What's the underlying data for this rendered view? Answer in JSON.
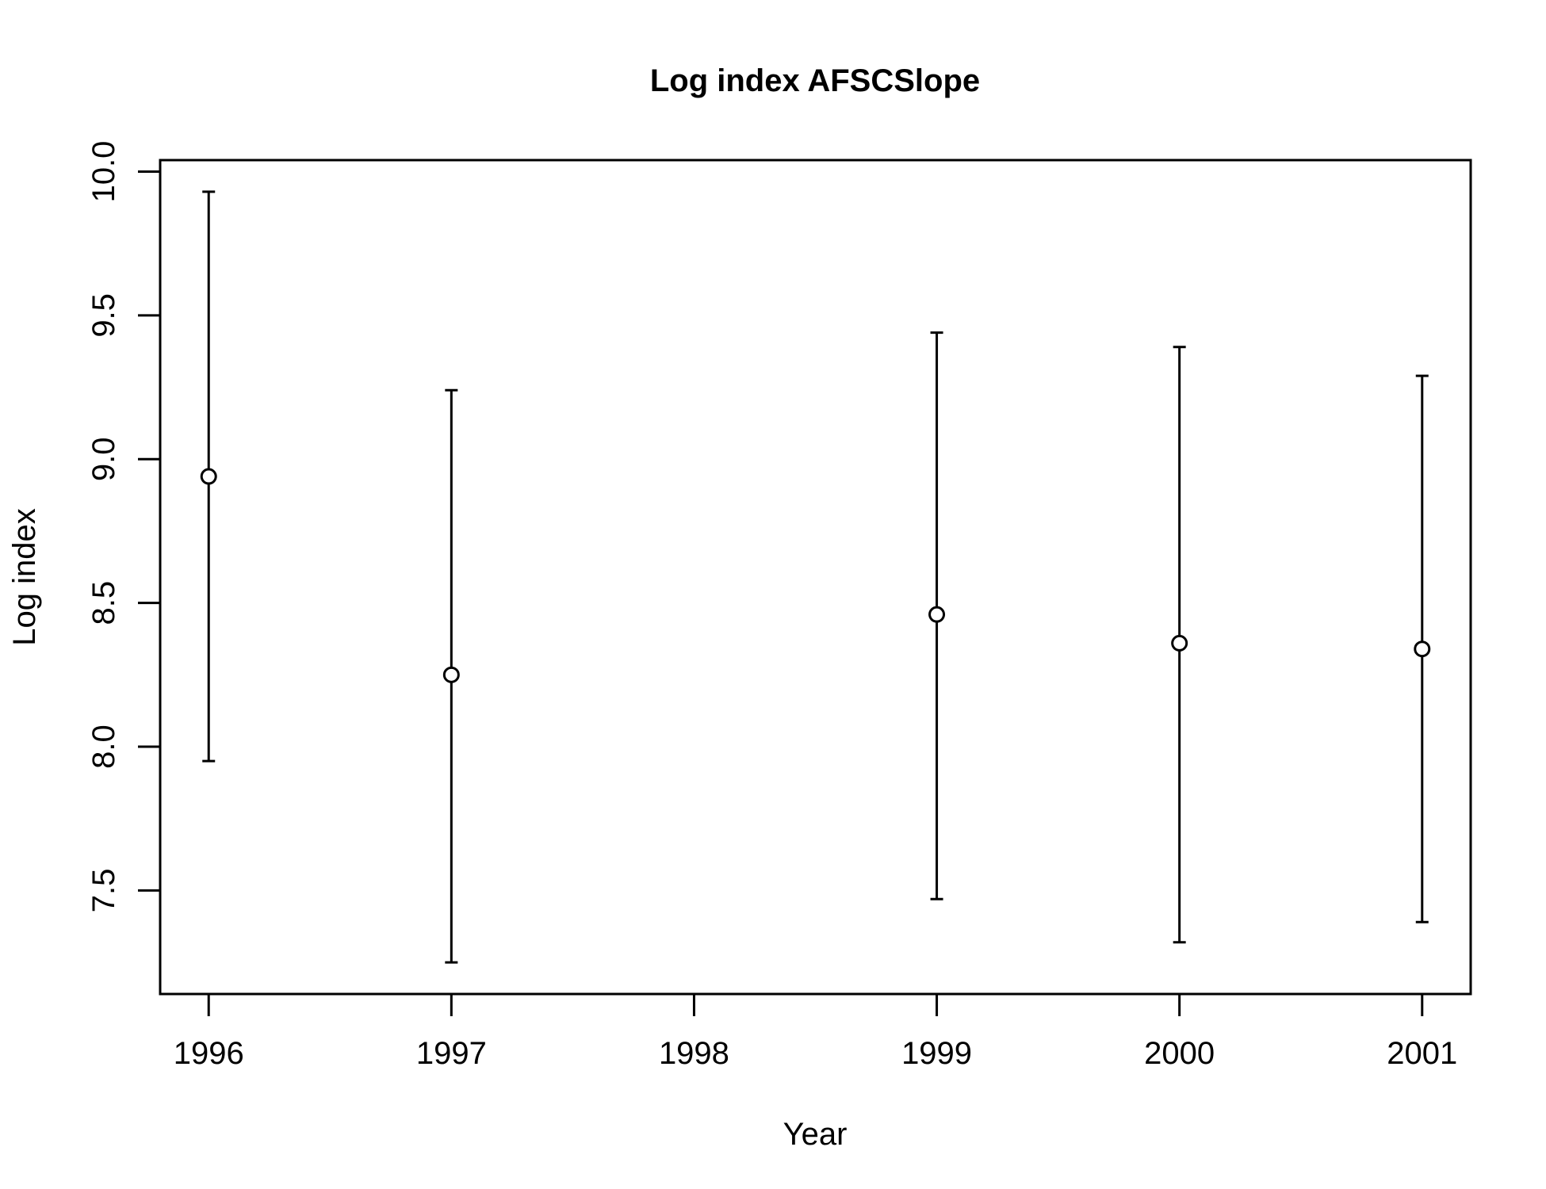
{
  "chart_data": {
    "type": "scatter",
    "title": "Log index AFSCSlope",
    "xlabel": "Year",
    "ylabel": "Log index",
    "x_ticks": [
      "1996",
      "1997",
      "1998",
      "1999",
      "2000",
      "2001"
    ],
    "y_ticks": [
      "7.5",
      "8.0",
      "8.5",
      "9.0",
      "9.5",
      "10.0"
    ],
    "xlim": [
      1995.8,
      2001.2
    ],
    "ylim": [
      7.14,
      10.04
    ],
    "grid": false,
    "legend": "none",
    "series": [
      {
        "points": [
          {
            "x": 1996,
            "y": 8.94,
            "lower": 7.95,
            "upper": 9.93
          },
          {
            "x": 1997,
            "y": 8.25,
            "lower": 7.25,
            "upper": 9.24
          },
          {
            "x": 1999,
            "y": 8.46,
            "lower": 7.47,
            "upper": 9.44
          },
          {
            "x": 2000,
            "y": 8.36,
            "lower": 7.32,
            "upper": 9.39
          },
          {
            "x": 2001,
            "y": 8.34,
            "lower": 7.39,
            "upper": 9.29
          }
        ]
      }
    ],
    "colors": {
      "marks": "#000000",
      "point_fill": "#ffffff",
      "background": "#ffffff"
    }
  }
}
